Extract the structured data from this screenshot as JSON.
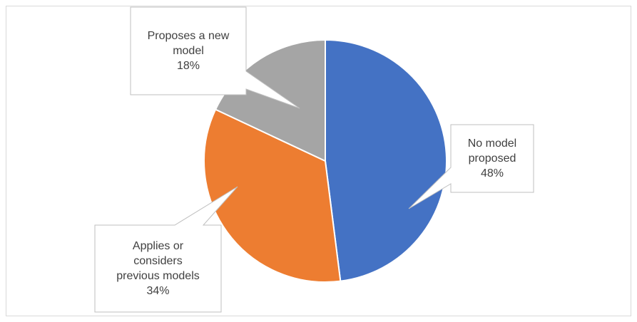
{
  "chart_data": {
    "type": "pie",
    "categories": [
      "No model proposed",
      "Applies or considers previous models",
      "Proposes a new model"
    ],
    "values": [
      48,
      34,
      18
    ],
    "value_labels": [
      "48%",
      "34%",
      "18%"
    ],
    "colors": [
      "#4472c4",
      "#ed7d31",
      "#a5a5a5"
    ]
  }
}
